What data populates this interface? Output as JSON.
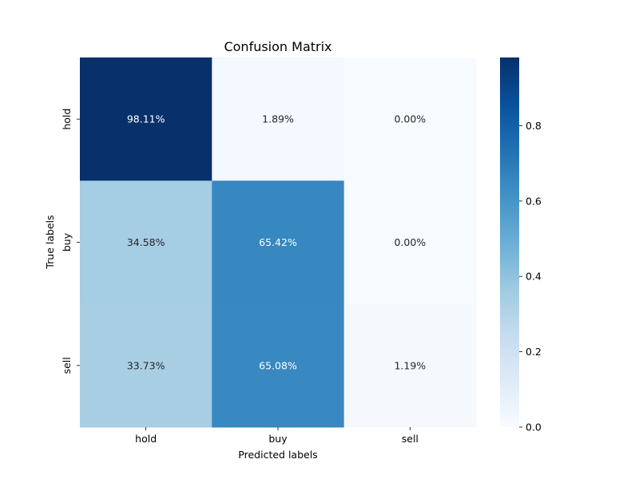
{
  "chart_data": {
    "type": "heatmap",
    "title": "Confusion Matrix",
    "xlabel": "Predicted labels",
    "ylabel": "True labels",
    "x_categories": [
      "hold",
      "buy",
      "sell"
    ],
    "y_categories": [
      "hold",
      "buy",
      "sell"
    ],
    "values": [
      [
        0.9811,
        0.0189,
        0.0
      ],
      [
        0.3458,
        0.6542,
        0.0
      ],
      [
        0.3373,
        0.6508,
        0.0119
      ]
    ],
    "annotations": [
      [
        "98.11%",
        "1.89%",
        "0.00%"
      ],
      [
        "34.58%",
        "65.42%",
        "0.00%"
      ],
      [
        "33.73%",
        "65.08%",
        "1.19%"
      ]
    ],
    "colormap": "Blues",
    "colorbar": {
      "range": [
        0.0,
        0.9811
      ],
      "ticks": [
        0.0,
        0.2,
        0.4,
        0.6,
        0.8
      ],
      "tick_labels": [
        "0.0",
        "0.2",
        "0.4",
        "0.6",
        "0.8"
      ]
    }
  }
}
